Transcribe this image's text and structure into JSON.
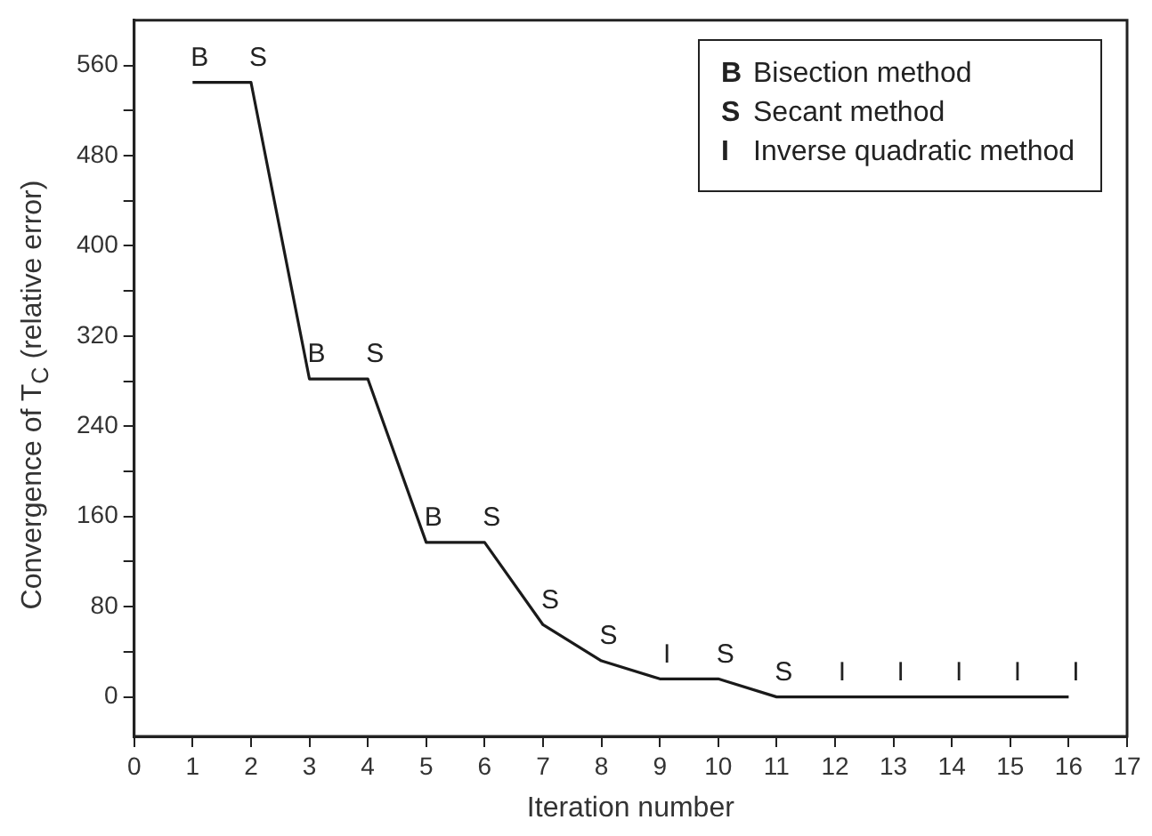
{
  "chart_data": {
    "type": "line",
    "xlabel": "Iteration number",
    "ylabel": "Convergence of T$_{C}$ (relative error)",
    "x": [
      1,
      2,
      3,
      4,
      5,
      6,
      7,
      8,
      9,
      10,
      11,
      12,
      13,
      14,
      15,
      16
    ],
    "series": [
      {
        "color": "#1a1a1a",
        "values": [
          545,
          545,
          282,
          282,
          137,
          137,
          64,
          32,
          16,
          16,
          0,
          0,
          0,
          0,
          0,
          0
        ]
      }
    ],
    "xlim": [
      0,
      17
    ],
    "xticks": [
      0,
      1,
      2,
      3,
      4,
      5,
      6,
      7,
      8,
      9,
      10,
      11,
      12,
      13,
      14,
      15,
      16,
      17
    ],
    "ylim": [
      -35,
      600
    ],
    "yticks": [
      0,
      {
        "value": 40,
        "label": null
      },
      80,
      {
        "value": 120,
        "label": null
      },
      160,
      {
        "value": 200,
        "label": null
      },
      240,
      {
        "value": 280,
        "label": null
      },
      320,
      {
        "value": 360,
        "label": null
      },
      400,
      {
        "value": 440,
        "label": null
      },
      480,
      {
        "value": 520,
        "label": null
      },
      560
    ],
    "grid": false,
    "legend": false,
    "marker": "none",
    "line_style": "solid",
    "annotations": [
      {
        "text": "B",
        "x": 1,
        "y": 545
      },
      {
        "text": "S",
        "x": 2,
        "y": 545
      },
      {
        "text": "B",
        "x": 3,
        "y": 282
      },
      {
        "text": "S",
        "x": 4,
        "y": 282
      },
      {
        "text": "B",
        "x": 5,
        "y": 137
      },
      {
        "text": "S",
        "x": 6,
        "y": 137
      },
      {
        "text": "S",
        "x": 7,
        "y": 64
      },
      {
        "text": "S",
        "x": 8,
        "y": 32
      },
      {
        "text": "I",
        "x": 9,
        "y": 16
      },
      {
        "text": "S",
        "x": 10,
        "y": 16
      },
      {
        "text": "S",
        "x": 11,
        "y": 0
      },
      {
        "text": "I",
        "x": 12,
        "y": 0
      },
      {
        "text": "I",
        "x": 13,
        "y": 0
      },
      {
        "text": "I",
        "x": 14,
        "y": 0
      },
      {
        "text": "I",
        "x": 15,
        "y": 0
      },
      {
        "text": "I",
        "x": 16,
        "y": 0
      },
      "B  Bisection method",
      "S  Secant method",
      "I  Inverse quadratic method"
    ]
  }
}
